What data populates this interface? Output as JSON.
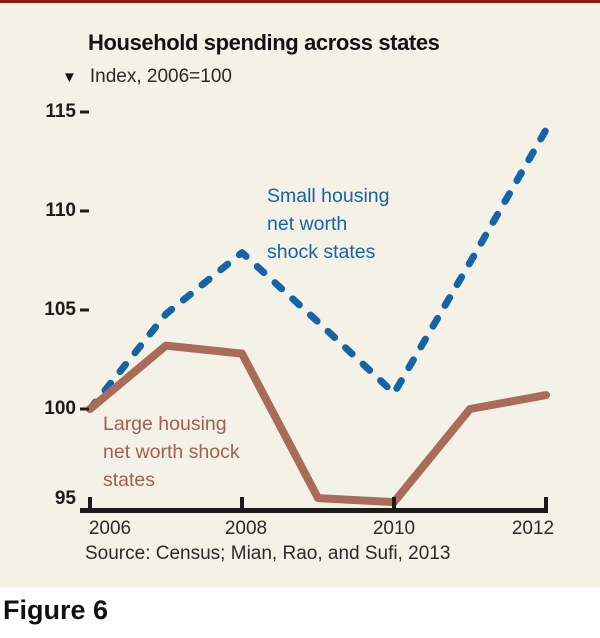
{
  "header": {
    "title": "Household spending across states",
    "marker": "▼",
    "index_label": "Index, 2006=100"
  },
  "footer": {
    "source": "Source: Census; Mian, Rao, and Sufi, 2013",
    "figure_label": "Figure 6"
  },
  "colors": {
    "background": "#f4f1e6",
    "top_bar": "#8c1b10",
    "axis": "#1b1b1b",
    "small_series": "#1663a8",
    "large_series": "#aa6c5a"
  },
  "chart_data": {
    "type": "line",
    "title": "Household spending across states",
    "ylabel": "Index, 2006=100",
    "source": "Source: Census; Mian, Rao, and Sufi, 2013",
    "x": [
      2006,
      2007,
      2008,
      2009,
      2010,
      2011,
      2012
    ],
    "series": [
      {
        "name": "Small housing net worth shock states",
        "color": "#1663a8",
        "line_style": "dashed",
        "values": [
          100,
          104.8,
          107.9,
          104.4,
          100.8,
          107.4,
          114.1
        ]
      },
      {
        "name": "Large housing net worth shock states",
        "color": "#aa6c5a",
        "line_style": "solid",
        "values": [
          100,
          103.2,
          102.8,
          95.5,
          95.3,
          100,
          100.7
        ]
      }
    ],
    "ylim": [
      95,
      115
    ],
    "xlim": [
      2006,
      2012
    ],
    "y_ticks": [
      115,
      110,
      105,
      100,
      95
    ],
    "x_ticks": [
      2006,
      2008,
      2010,
      2012
    ],
    "grid": false,
    "legend_position": "inline-annotations",
    "annotations": [
      {
        "text": "Small housing\nnet worth\nshock states",
        "color": "#1663a8"
      },
      {
        "text": "Large housing\nnet worth shock\nstates",
        "color": "#a25f4e"
      }
    ]
  }
}
